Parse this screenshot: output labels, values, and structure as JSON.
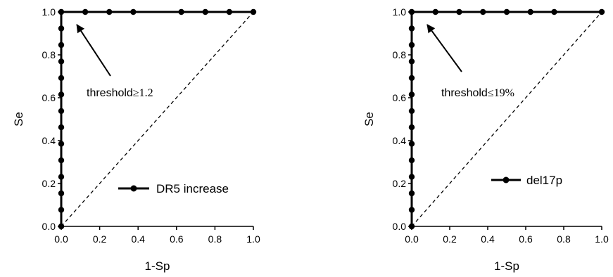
{
  "chart_data": [
    {
      "type": "line",
      "xlabel": "1-Sp",
      "ylabel": "Se",
      "xlim": [
        0,
        1
      ],
      "ylim": [
        0,
        1
      ],
      "xticks": [
        "0.0",
        "0.2",
        "0.4",
        "0.6",
        "0.8",
        "1.0"
      ],
      "yticks": [
        "0.0",
        "0.2",
        "0.4",
        "0.6",
        "0.8",
        "1.0"
      ],
      "grid": false,
      "legend_position": "bottom-right",
      "series": [
        {
          "name": "DR5 increase",
          "marker": "circle",
          "points": [
            [
              0,
              0
            ],
            [
              0,
              0.077
            ],
            [
              0,
              0.154
            ],
            [
              0,
              0.231
            ],
            [
              0,
              0.308
            ],
            [
              0,
              0.385
            ],
            [
              0,
              0.462
            ],
            [
              0,
              0.538
            ],
            [
              0,
              0.615
            ],
            [
              0,
              0.692
            ],
            [
              0,
              0.769
            ],
            [
              0,
              0.846
            ],
            [
              0,
              0.923
            ],
            [
              0,
              1.0
            ],
            [
              0.125,
              1.0
            ],
            [
              0.25,
              1.0
            ],
            [
              0.375,
              1.0
            ],
            [
              0.625,
              1.0
            ],
            [
              0.75,
              1.0
            ],
            [
              0.875,
              1.0
            ],
            [
              1.0,
              1.0
            ]
          ]
        }
      ],
      "reference_line": [
        [
          0,
          0
        ],
        [
          1,
          1
        ]
      ],
      "annotation": {
        "text": "threshold",
        "symbol": "≥",
        "value": "1.2",
        "arrow_target": [
          0.03,
          0.98
        ]
      }
    },
    {
      "type": "line",
      "xlabel": "1-Sp",
      "ylabel": "Se",
      "xlim": [
        0,
        1
      ],
      "ylim": [
        0,
        1
      ],
      "xticks": [
        "0.0",
        "0.2",
        "0.4",
        "0.6",
        "0.8",
        "1.0"
      ],
      "yticks": [
        "0.0",
        "0.2",
        "0.4",
        "0.6",
        "0.8",
        "1.0"
      ],
      "grid": false,
      "legend_position": "bottom-right",
      "series": [
        {
          "name": "del17p",
          "marker": "circle",
          "points": [
            [
              0,
              0
            ],
            [
              0,
              0.077
            ],
            [
              0,
              0.154
            ],
            [
              0,
              0.231
            ],
            [
              0,
              0.308
            ],
            [
              0,
              0.385
            ],
            [
              0,
              0.462
            ],
            [
              0,
              0.538
            ],
            [
              0,
              0.615
            ],
            [
              0,
              0.692
            ],
            [
              0,
              0.769
            ],
            [
              0,
              0.846
            ],
            [
              0,
              0.923
            ],
            [
              0,
              1.0
            ],
            [
              0.125,
              1.0
            ],
            [
              0.25,
              1.0
            ],
            [
              0.375,
              1.0
            ],
            [
              0.5,
              1.0
            ],
            [
              0.625,
              1.0
            ],
            [
              0.75,
              1.0
            ],
            [
              1.0,
              1.0
            ]
          ]
        }
      ],
      "reference_line": [
        [
          0,
          0
        ],
        [
          1,
          1
        ]
      ],
      "annotation": {
        "text": "threshold",
        "symbol": "≤",
        "value": "19%",
        "arrow_target": [
          0.03,
          0.98
        ]
      }
    }
  ]
}
